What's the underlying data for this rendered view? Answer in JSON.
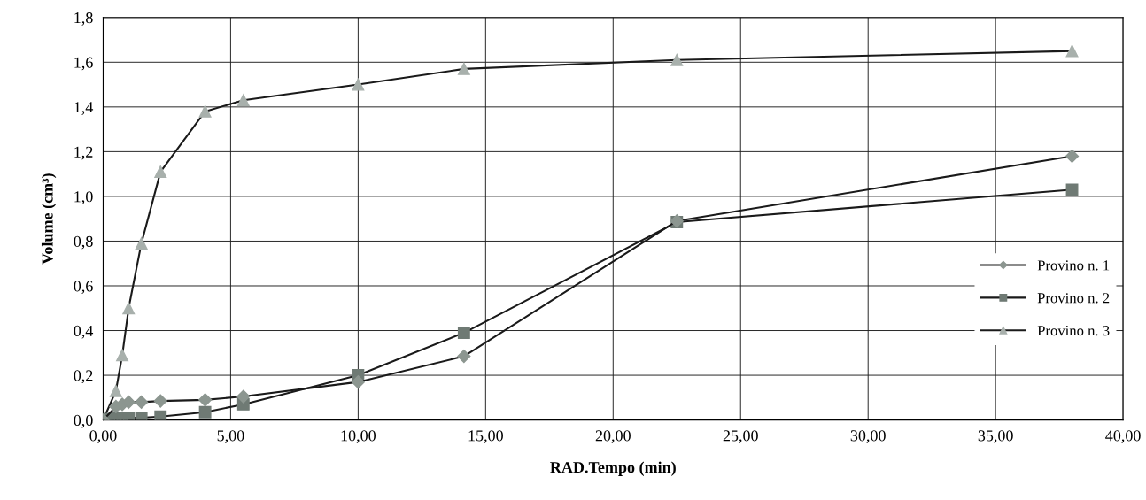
{
  "chart_data": {
    "type": "line",
    "xlabel": "RAD.Tempo (min)",
    "ylabel": "Volume (cm³)",
    "xlim": [
      0,
      40
    ],
    "ylim": [
      0,
      1.8
    ],
    "xticks": [
      {
        "value": 0,
        "label": "0,00"
      },
      {
        "value": 5,
        "label": "5,00"
      },
      {
        "value": 10,
        "label": "10,00"
      },
      {
        "value": 15,
        "label": "15,00"
      },
      {
        "value": 20,
        "label": "20,00"
      },
      {
        "value": 25,
        "label": "25,00"
      },
      {
        "value": 30,
        "label": "30,00"
      },
      {
        "value": 35,
        "label": "35,00"
      },
      {
        "value": 40,
        "label": "40,00"
      }
    ],
    "yticks": [
      {
        "value": 0,
        "label": "0,0"
      },
      {
        "value": 0.2,
        "label": "0,2"
      },
      {
        "value": 0.4,
        "label": "0,4"
      },
      {
        "value": 0.6,
        "label": "0,6"
      },
      {
        "value": 0.8,
        "label": "0,8"
      },
      {
        "value": 1.0,
        "label": "1,0"
      },
      {
        "value": 1.2,
        "label": "1,2"
      },
      {
        "value": 1.4,
        "label": "1,4"
      },
      {
        "value": 1.6,
        "label": "1,6"
      },
      {
        "value": 1.8,
        "label": "1,8"
      }
    ],
    "grid": true,
    "legend": "right",
    "line_style": "solid",
    "series": [
      {
        "name": "Provino n. 1",
        "color": "#8c9690",
        "marker": "diamond",
        "x": [
          0,
          0.5,
          0.75,
          1.0,
          1.5,
          2.25,
          4.0,
          5.5,
          10.0,
          14.15,
          22.5,
          38.0
        ],
        "values": [
          0,
          0.06,
          0.07,
          0.08,
          0.08,
          0.085,
          0.09,
          0.105,
          0.17,
          0.285,
          0.89,
          1.18
        ]
      },
      {
        "name": "Provino n. 2",
        "color": "#6f7a74",
        "marker": "square",
        "x": [
          0,
          0.25,
          0.5,
          0.75,
          1.0,
          1.5,
          2.25,
          4.0,
          5.5,
          10.0,
          14.15,
          22.5,
          38.0
        ],
        "values": [
          0,
          0.005,
          0.01,
          0.01,
          0.01,
          0.01,
          0.015,
          0.035,
          0.07,
          0.2,
          0.39,
          0.885,
          1.03
        ]
      },
      {
        "name": "Provino n. 3",
        "color": "#a8b0ac",
        "marker": "triangle",
        "x": [
          0,
          0.5,
          0.75,
          1.0,
          1.5,
          2.25,
          4.0,
          5.5,
          10.0,
          14.15,
          22.5,
          38.0
        ],
        "values": [
          0,
          0.13,
          0.29,
          0.5,
          0.79,
          1.11,
          1.38,
          1.43,
          1.5,
          1.57,
          1.61,
          1.65
        ]
      }
    ]
  }
}
